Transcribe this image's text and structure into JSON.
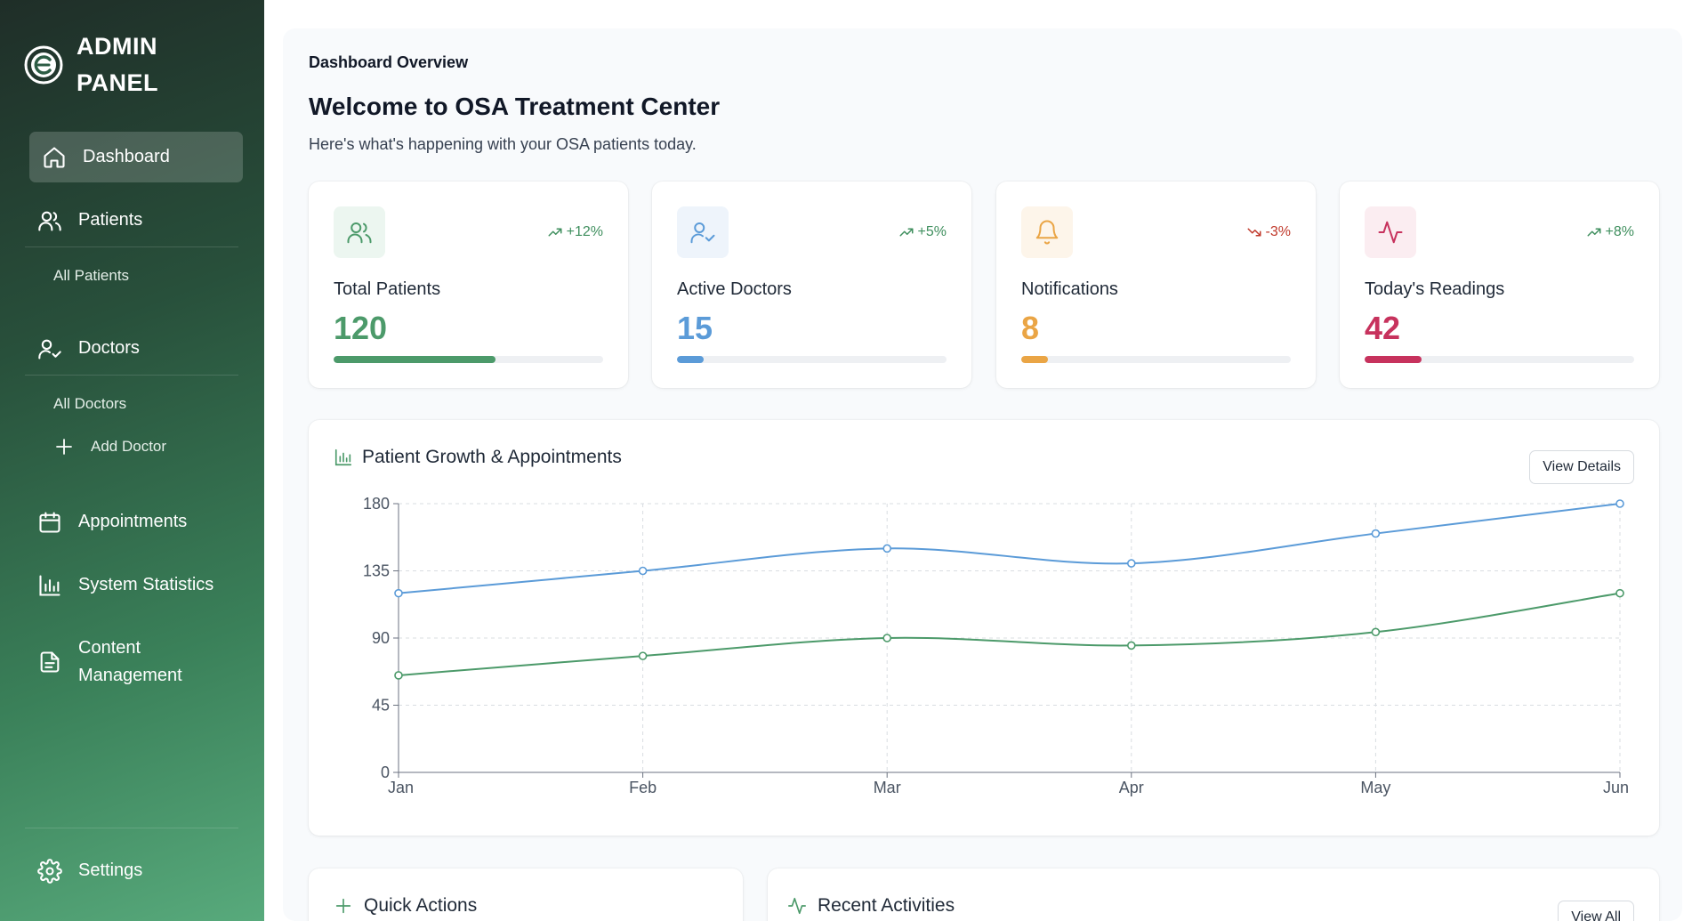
{
  "sidebar": {
    "brand": {
      "line1": "ADMIN",
      "line2": "PANEL"
    },
    "items": {
      "dashboard": "Dashboard",
      "patients": "Patients",
      "all_patients": "All Patients",
      "doctors": "Doctors",
      "all_doctors": "All Doctors",
      "add_doctor": "Add Doctor",
      "appointments": "Appointments",
      "system_statistics": "System Statistics",
      "content_management_1": "Content",
      "content_management_2": "Management",
      "settings": "Settings"
    }
  },
  "main": {
    "overview_label": "Dashboard Overview",
    "welcome": "Welcome to OSA Treatment Center",
    "subtitle": "Here's what's happening with your OSA patients today."
  },
  "cards": [
    {
      "title": "Total Patients",
      "value": "120",
      "trend": "+12%",
      "direction": "up",
      "color": "#4c9a6a",
      "icon_bg": "#ecf6f0",
      "progress": 0.6,
      "icon": "users-icon"
    },
    {
      "title": "Active Doctors",
      "value": "15",
      "trend": "+5%",
      "direction": "up",
      "color": "#5b9bd8",
      "icon_bg": "#eef4fb",
      "progress": 0.1,
      "icon": "user-check-icon"
    },
    {
      "title": "Notifications",
      "value": "8",
      "trend": "-3%",
      "direction": "down",
      "color": "#eaa545",
      "icon_bg": "#fdf5ea",
      "progress": 0.1,
      "icon": "bell-icon"
    },
    {
      "title": "Today's Readings",
      "value": "42",
      "trend": "+8%",
      "direction": "up",
      "color": "#c7325d",
      "icon_bg": "#fbedf1",
      "progress": 0.21,
      "icon": "activity-icon"
    }
  ],
  "chart_panel": {
    "title": "Patient Growth & Appointments",
    "view_details": "View Details"
  },
  "chart_data": {
    "type": "line",
    "categories": [
      "Jan",
      "Feb",
      "Mar",
      "Apr",
      "May",
      "Jun"
    ],
    "ylim": [
      0,
      180
    ],
    "yticks": [
      "0",
      "45",
      "90",
      "135",
      "180"
    ],
    "grid": true,
    "series": [
      {
        "values": [
          120,
          135,
          150,
          140,
          160,
          180
        ],
        "color": "#5b9bd8"
      },
      {
        "values": [
          65,
          78,
          90,
          85,
          94,
          120
        ],
        "color": "#4c9a6a"
      }
    ]
  },
  "bottom": {
    "quick_actions": "Quick Actions",
    "recent_activities": "Recent Activities",
    "view_all": "View All"
  }
}
